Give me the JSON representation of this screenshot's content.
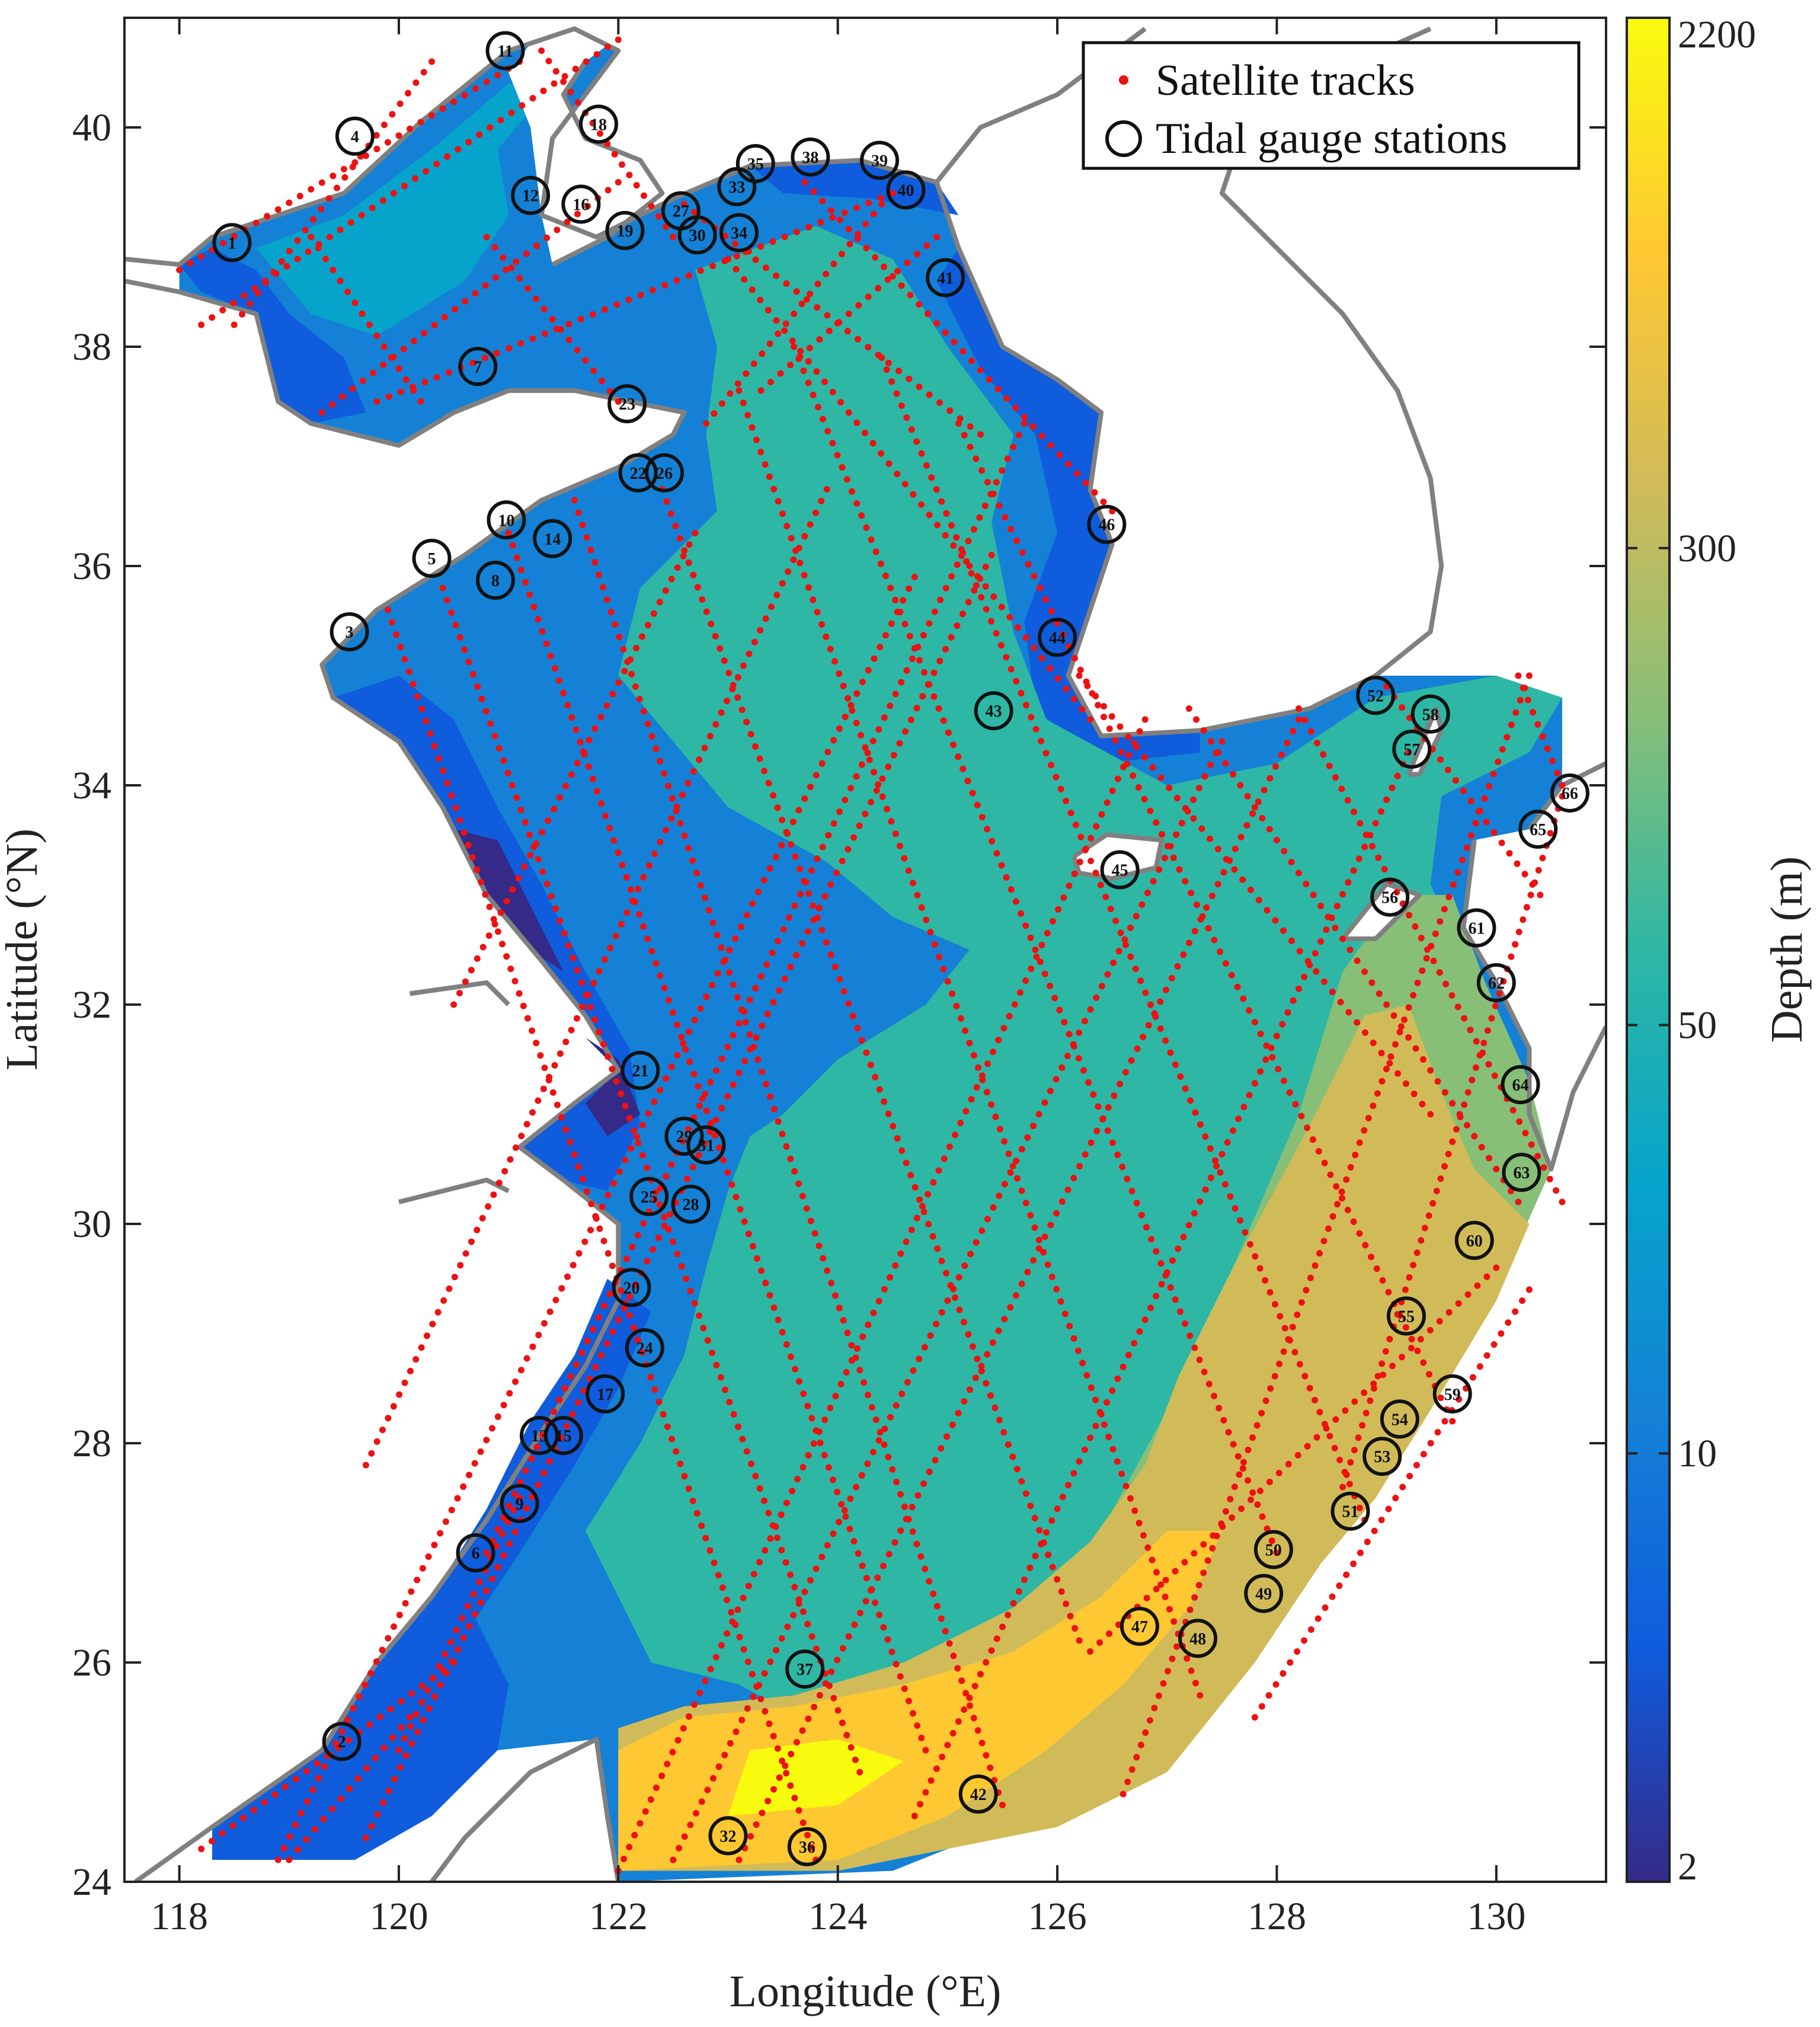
{
  "map": {
    "xlabel": "Longitude (°E)",
    "ylabel": "Latitude (°N)",
    "x_ticks": [
      "118",
      "120",
      "122",
      "124",
      "126",
      "128",
      "130"
    ],
    "y_ticks": [
      "24",
      "26",
      "28",
      "30",
      "32",
      "34",
      "36",
      "38",
      "40"
    ],
    "xlim": [
      117.5,
      131.0
    ],
    "ylim": [
      24.0,
      41.0
    ],
    "land_color": "#ffffff",
    "coastline_color": "#808080",
    "track_color": "#ee1111"
  },
  "legend": {
    "items": [
      {
        "label": "Satellite tracks",
        "symbol": "red-dot"
      },
      {
        "label": "Tidal gauge stations",
        "symbol": "black-circle"
      }
    ]
  },
  "colorbar": {
    "label": "Depth (m)",
    "tick_labels": [
      "2",
      "10",
      "50",
      "300",
      "2200"
    ],
    "colors": [
      "#352a87",
      "#0f5cdd",
      "#1481d6",
      "#06a4ca",
      "#2eb7a4",
      "#87bf77",
      "#d1bb59",
      "#fec832",
      "#f9fb0e"
    ]
  },
  "depth_zones_legend": [
    "2",
    "10",
    "50",
    "300",
    "2200"
  ],
  "stations": [
    {
      "id": "1",
      "lon": 118.48,
      "lat": 38.95
    },
    {
      "id": "2",
      "lon": 119.48,
      "lat": 25.28
    },
    {
      "id": "3",
      "lon": 119.55,
      "lat": 35.4
    },
    {
      "id": "4",
      "lon": 119.6,
      "lat": 39.92
    },
    {
      "id": "5",
      "lon": 120.3,
      "lat": 36.07
    },
    {
      "id": "6",
      "lon": 120.7,
      "lat": 27.0
    },
    {
      "id": "7",
      "lon": 120.72,
      "lat": 37.82
    },
    {
      "id": "8",
      "lon": 120.88,
      "lat": 35.87
    },
    {
      "id": "9",
      "lon": 121.1,
      "lat": 27.45
    },
    {
      "id": "10",
      "lon": 120.98,
      "lat": 36.42
    },
    {
      "id": "11",
      "lon": 120.97,
      "lat": 40.7
    },
    {
      "id": "12",
      "lon": 121.2,
      "lat": 39.38
    },
    {
      "id": "13",
      "lon": 121.28,
      "lat": 28.07
    },
    {
      "id": "14",
      "lon": 121.4,
      "lat": 36.25
    },
    {
      "id": "15",
      "lon": 121.5,
      "lat": 28.07
    },
    {
      "id": "16",
      "lon": 121.66,
      "lat": 39.3
    },
    {
      "id": "17",
      "lon": 121.88,
      "lat": 28.45
    },
    {
      "id": "18",
      "lon": 121.82,
      "lat": 40.03
    },
    {
      "id": "19",
      "lon": 122.06,
      "lat": 39.06
    },
    {
      "id": "20",
      "lon": 122.12,
      "lat": 29.42
    },
    {
      "id": "21",
      "lon": 122.2,
      "lat": 31.4
    },
    {
      "id": "22",
      "lon": 122.18,
      "lat": 36.85
    },
    {
      "id": "23",
      "lon": 122.08,
      "lat": 37.48
    },
    {
      "id": "24",
      "lon": 122.24,
      "lat": 28.87
    },
    {
      "id": "25",
      "lon": 122.28,
      "lat": 30.25
    },
    {
      "id": "26",
      "lon": 122.42,
      "lat": 36.85
    },
    {
      "id": "27",
      "lon": 122.57,
      "lat": 39.24
    },
    {
      "id": "28",
      "lon": 122.66,
      "lat": 30.18
    },
    {
      "id": "29",
      "lon": 122.6,
      "lat": 30.8
    },
    {
      "id": "30",
      "lon": 122.72,
      "lat": 39.02
    },
    {
      "id": "31",
      "lon": 122.8,
      "lat": 30.72
    },
    {
      "id": "32",
      "lon": 123.0,
      "lat": 24.42
    },
    {
      "id": "33",
      "lon": 123.08,
      "lat": 39.46
    },
    {
      "id": "34",
      "lon": 123.1,
      "lat": 39.04
    },
    {
      "id": "35",
      "lon": 123.25,
      "lat": 39.67
    },
    {
      "id": "36",
      "lon": 123.72,
      "lat": 24.32
    },
    {
      "id": "37",
      "lon": 123.7,
      "lat": 25.94
    },
    {
      "id": "38",
      "lon": 123.75,
      "lat": 39.73
    },
    {
      "id": "39",
      "lon": 124.38,
      "lat": 39.7
    },
    {
      "id": "40",
      "lon": 124.62,
      "lat": 39.43
    },
    {
      "id": "41",
      "lon": 124.98,
      "lat": 38.63
    },
    {
      "id": "42",
      "lon": 125.28,
      "lat": 24.8
    },
    {
      "id": "43",
      "lon": 125.42,
      "lat": 34.68
    },
    {
      "id": "44",
      "lon": 126.0,
      "lat": 35.35
    },
    {
      "id": "45",
      "lon": 126.57,
      "lat": 33.23
    },
    {
      "id": "46",
      "lon": 126.45,
      "lat": 36.38
    },
    {
      "id": "47",
      "lon": 126.75,
      "lat": 26.33
    },
    {
      "id": "48",
      "lon": 127.28,
      "lat": 26.22
    },
    {
      "id": "49",
      "lon": 127.88,
      "lat": 26.63
    },
    {
      "id": "50",
      "lon": 127.97,
      "lat": 27.03
    },
    {
      "id": "51",
      "lon": 128.67,
      "lat": 27.38
    },
    {
      "id": "52",
      "lon": 128.9,
      "lat": 34.82
    },
    {
      "id": "53",
      "lon": 128.96,
      "lat": 27.88
    },
    {
      "id": "54",
      "lon": 129.12,
      "lat": 28.22
    },
    {
      "id": "55",
      "lon": 129.18,
      "lat": 29.16
    },
    {
      "id": "56",
      "lon": 129.03,
      "lat": 32.98
    },
    {
      "id": "57",
      "lon": 129.23,
      "lat": 34.33
    },
    {
      "id": "58",
      "lon": 129.4,
      "lat": 34.65
    },
    {
      "id": "59",
      "lon": 129.6,
      "lat": 28.45
    },
    {
      "id": "60",
      "lon": 129.8,
      "lat": 29.85
    },
    {
      "id": "61",
      "lon": 129.82,
      "lat": 32.7
    },
    {
      "id": "62",
      "lon": 130.0,
      "lat": 32.2
    },
    {
      "id": "63",
      "lon": 130.23,
      "lat": 30.47
    },
    {
      "id": "64",
      "lon": 130.22,
      "lat": 31.27
    },
    {
      "id": "65",
      "lon": 130.38,
      "lat": 33.6
    },
    {
      "id": "66",
      "lon": 130.67,
      "lat": 33.93
    }
  ]
}
